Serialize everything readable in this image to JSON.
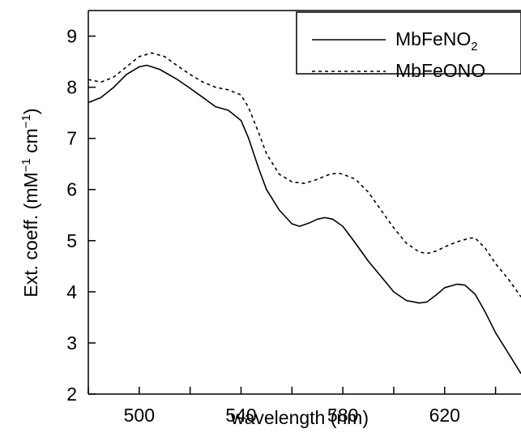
{
  "chart_data": {
    "type": "line",
    "xlabel": "wavelength (nm)",
    "ylabel_text": "Ext. coeff. (mM",
    "ylabel_sup1": "−1",
    "ylabel_mid": " cm",
    "ylabel_sup2": "−1",
    "ylabel_end": ")",
    "xlim": [
      480,
      650
    ],
    "ylim": [
      2,
      9.5
    ],
    "xticks": [
      500,
      540,
      580,
      620
    ],
    "xticks_minor": [
      480,
      520,
      560,
      600,
      640
    ],
    "yticks": [
      2,
      3,
      4,
      5,
      6,
      7,
      8,
      9
    ],
    "legend_position": "top-right",
    "series": [
      {
        "name": "MbFeNO",
        "name_subscript": "2",
        "style": "solid",
        "x": [
          480,
          485,
          490,
          495,
          500,
          503,
          508,
          515,
          520,
          525,
          530,
          535,
          540,
          543,
          547,
          550,
          555,
          560,
          563,
          567,
          570,
          573,
          576,
          580,
          585,
          590,
          595,
          600,
          605,
          610,
          613,
          617,
          620,
          625,
          628,
          632,
          636,
          640,
          645,
          650
        ],
        "y": [
          7.7,
          7.8,
          8.0,
          8.25,
          8.4,
          8.43,
          8.35,
          8.15,
          7.98,
          7.8,
          7.62,
          7.55,
          7.35,
          7.0,
          6.4,
          6.0,
          5.6,
          5.33,
          5.28,
          5.35,
          5.42,
          5.45,
          5.42,
          5.28,
          4.95,
          4.6,
          4.3,
          4.0,
          3.83,
          3.78,
          3.8,
          3.95,
          4.08,
          4.15,
          4.13,
          3.95,
          3.6,
          3.2,
          2.8,
          2.4
        ]
      },
      {
        "name": "MbFeONO",
        "name_subscript": "",
        "style": "dashed",
        "x": [
          480,
          485,
          490,
          495,
          500,
          505,
          510,
          515,
          520,
          525,
          530,
          535,
          540,
          543,
          547,
          550,
          555,
          560,
          565,
          570,
          575,
          578,
          580,
          585,
          590,
          595,
          600,
          605,
          610,
          613,
          617,
          620,
          625,
          630,
          632,
          636,
          640,
          645,
          650
        ],
        "y": [
          8.15,
          8.1,
          8.2,
          8.4,
          8.6,
          8.67,
          8.6,
          8.42,
          8.25,
          8.1,
          8.0,
          7.95,
          7.85,
          7.6,
          7.1,
          6.7,
          6.3,
          6.15,
          6.12,
          6.2,
          6.3,
          6.32,
          6.3,
          6.2,
          5.95,
          5.6,
          5.25,
          4.95,
          4.78,
          4.75,
          4.8,
          4.88,
          4.98,
          5.05,
          5.05,
          4.85,
          4.55,
          4.25,
          3.9
        ]
      }
    ]
  }
}
